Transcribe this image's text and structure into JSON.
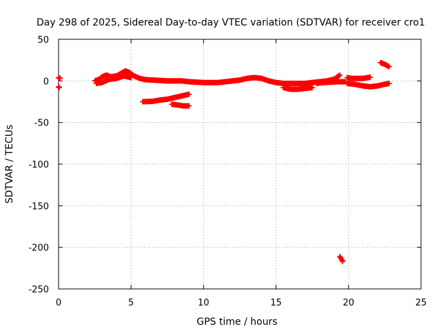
{
  "chart_data": {
    "type": "scatter",
    "title": "Day 298 of 2025, Sidereal Day-to-day VTEC variation (SDTVAR) for receiver cro1",
    "xlabel": "GPS time / hours",
    "ylabel": "SDTVAR / TECUs",
    "xlim": [
      0,
      25
    ],
    "ylim": [
      -250,
      50
    ],
    "xticks": [
      "0",
      "5",
      "10",
      "15",
      "20",
      "25"
    ],
    "yticks": [
      "50",
      "0",
      "-50",
      "-100",
      "-150",
      "-200",
      "-250"
    ],
    "grid": true,
    "marker": "plus",
    "color": "#ff0000",
    "series": [
      {
        "name": "SDTVAR",
        "segments": [
          [
            [
              0.0,
              4
            ],
            [
              0.05,
              3.5
            ],
            [
              0.1,
              3
            ]
          ],
          [
            [
              0.0,
              -7
            ],
            [
              0.05,
              -8
            ]
          ],
          [
            [
              2.5,
              0
            ],
            [
              2.8,
              2
            ],
            [
              3.0,
              5
            ],
            [
              3.3,
              7
            ],
            [
              3.6,
              5
            ],
            [
              4.0,
              6
            ],
            [
              4.3,
              9
            ],
            [
              4.6,
              12
            ],
            [
              4.9,
              10
            ],
            [
              5.2,
              6
            ],
            [
              5.6,
              3
            ],
            [
              6.0,
              1.5
            ],
            [
              6.5,
              1
            ],
            [
              7.0,
              0.5
            ],
            [
              7.5,
              0
            ],
            [
              8.0,
              0
            ],
            [
              8.5,
              0
            ],
            [
              9.0,
              -1
            ],
            [
              9.5,
              -1.5
            ],
            [
              10.0,
              -2
            ],
            [
              10.5,
              -2
            ],
            [
              11.0,
              -2
            ],
            [
              11.5,
              -1
            ],
            [
              12.0,
              0
            ],
            [
              12.5,
              1
            ],
            [
              13.0,
              3
            ],
            [
              13.5,
              4
            ],
            [
              14.0,
              3
            ],
            [
              14.5,
              0
            ],
            [
              15.0,
              -2
            ],
            [
              15.5,
              -3
            ],
            [
              16.0,
              -3
            ],
            [
              16.5,
              -3
            ],
            [
              17.0,
              -3
            ],
            [
              17.5,
              -2
            ],
            [
              18.0,
              -1
            ],
            [
              18.5,
              0
            ],
            [
              19.0,
              2
            ],
            [
              19.4,
              7
            ]
          ],
          [
            [
              2.6,
              -3
            ],
            [
              3.0,
              -2
            ],
            [
              3.5,
              2
            ],
            [
              4.0,
              3
            ],
            [
              4.5,
              6
            ],
            [
              5.0,
              4
            ]
          ],
          [
            [
              5.8,
              -25
            ],
            [
              6.5,
              -24.5
            ],
            [
              7.0,
              -23
            ],
            [
              7.5,
              -22
            ],
            [
              8.0,
              -20
            ],
            [
              8.5,
              -18
            ],
            [
              9.0,
              -16
            ]
          ],
          [
            [
              7.8,
              -28
            ],
            [
              8.2,
              -29
            ],
            [
              8.6,
              -30
            ],
            [
              9.0,
              -30
            ]
          ],
          [
            [
              15.5,
              -8
            ],
            [
              16.0,
              -10
            ],
            [
              16.5,
              -10
            ],
            [
              17.0,
              -9
            ],
            [
              17.5,
              -8
            ]
          ],
          [
            [
              17.8,
              -3
            ],
            [
              18.2,
              -2
            ],
            [
              18.8,
              -1.5
            ],
            [
              19.2,
              -1
            ],
            [
              19.8,
              -1
            ]
          ],
          [
            [
              19.9,
              4
            ],
            [
              20.2,
              3
            ],
            [
              20.6,
              3
            ],
            [
              21.0,
              3
            ],
            [
              21.5,
              4.5
            ]
          ],
          [
            [
              19.9,
              -3
            ],
            [
              20.4,
              -4
            ],
            [
              21.0,
              -6
            ],
            [
              21.5,
              -7
            ],
            [
              22.0,
              -6
            ],
            [
              22.5,
              -4
            ],
            [
              22.8,
              -3
            ]
          ],
          [
            [
              22.2,
              22
            ],
            [
              22.5,
              20
            ],
            [
              22.8,
              17
            ]
          ],
          [
            [
              19.4,
              -211
            ],
            [
              19.5,
              -214
            ],
            [
              19.6,
              -217
            ]
          ]
        ]
      }
    ]
  }
}
